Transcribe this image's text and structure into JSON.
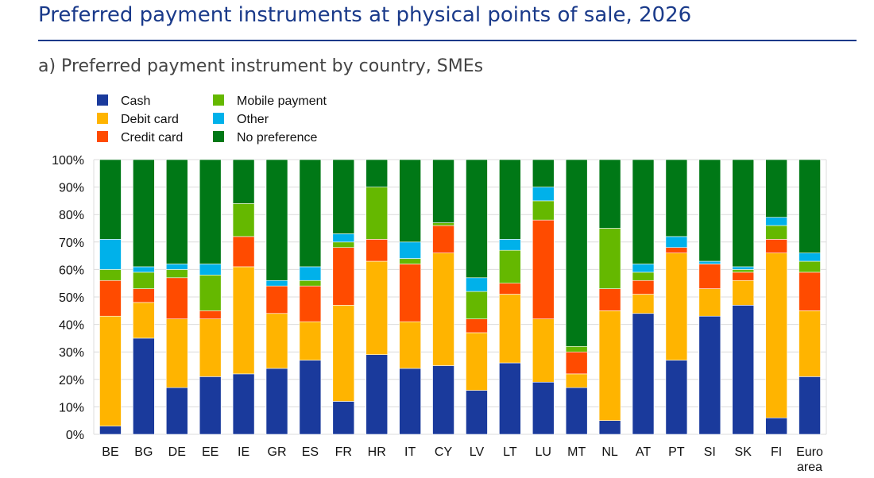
{
  "page": {
    "title": "Preferred payment instruments at physical points of sale, 2026",
    "subtitle": "a) Preferred payment instrument by country, SMEs"
  },
  "chart_data": {
    "type": "bar",
    "stacked": true,
    "categories": [
      "BE",
      "BG",
      "DE",
      "EE",
      "IE",
      "GR",
      "ES",
      "FR",
      "HR",
      "IT",
      "CY",
      "LV",
      "LT",
      "LU",
      "MT",
      "NL",
      "AT",
      "PT",
      "SI",
      "SK",
      "FI",
      "Euro area"
    ],
    "series": [
      {
        "name": "Cash",
        "color": "#1a3a9c",
        "values": [
          3,
          35,
          17,
          21,
          22,
          24,
          27,
          12,
          29,
          24,
          25,
          16,
          26,
          19,
          17,
          5,
          44,
          27,
          43,
          47,
          6,
          21
        ]
      },
      {
        "name": "Debit card",
        "color": "#ffb400",
        "values": [
          40,
          13,
          25,
          21,
          39,
          20,
          14,
          35,
          34,
          17,
          41,
          21,
          25,
          23,
          5,
          40,
          7,
          39,
          10,
          9,
          60,
          24
        ]
      },
      {
        "name": "Credit card",
        "color": "#ff4b00",
        "values": [
          13,
          5,
          15,
          3,
          11,
          10,
          13,
          21,
          8,
          21,
          10,
          5,
          4,
          36,
          8,
          8,
          5,
          2,
          9,
          3,
          5,
          14
        ]
      },
      {
        "name": "Mobile payment",
        "color": "#65b800",
        "values": [
          4,
          6,
          3,
          13,
          12,
          0,
          2,
          2,
          19,
          2,
          1,
          10,
          12,
          7,
          2,
          22,
          3,
          0,
          0,
          1,
          5,
          4
        ]
      },
      {
        "name": "Other",
        "color": "#00b1ea",
        "values": [
          11,
          2,
          2,
          4,
          0,
          2,
          5,
          3,
          0,
          6,
          0,
          5,
          4,
          5,
          0,
          0,
          3,
          4,
          1,
          1,
          3,
          3
        ]
      },
      {
        "name": "No preference",
        "color": "#007816",
        "values": [
          29,
          39,
          38,
          38,
          16,
          44,
          39,
          27,
          10,
          30,
          23,
          43,
          29,
          10,
          68,
          25,
          38,
          28,
          37,
          39,
          21,
          34
        ]
      }
    ],
    "y_ticks": [
      "0%",
      "10%",
      "20%",
      "30%",
      "40%",
      "50%",
      "60%",
      "70%",
      "80%",
      "90%",
      "100%"
    ],
    "ylim": [
      0,
      100
    ],
    "grid": true,
    "legend_position": "top-left, two columns"
  }
}
